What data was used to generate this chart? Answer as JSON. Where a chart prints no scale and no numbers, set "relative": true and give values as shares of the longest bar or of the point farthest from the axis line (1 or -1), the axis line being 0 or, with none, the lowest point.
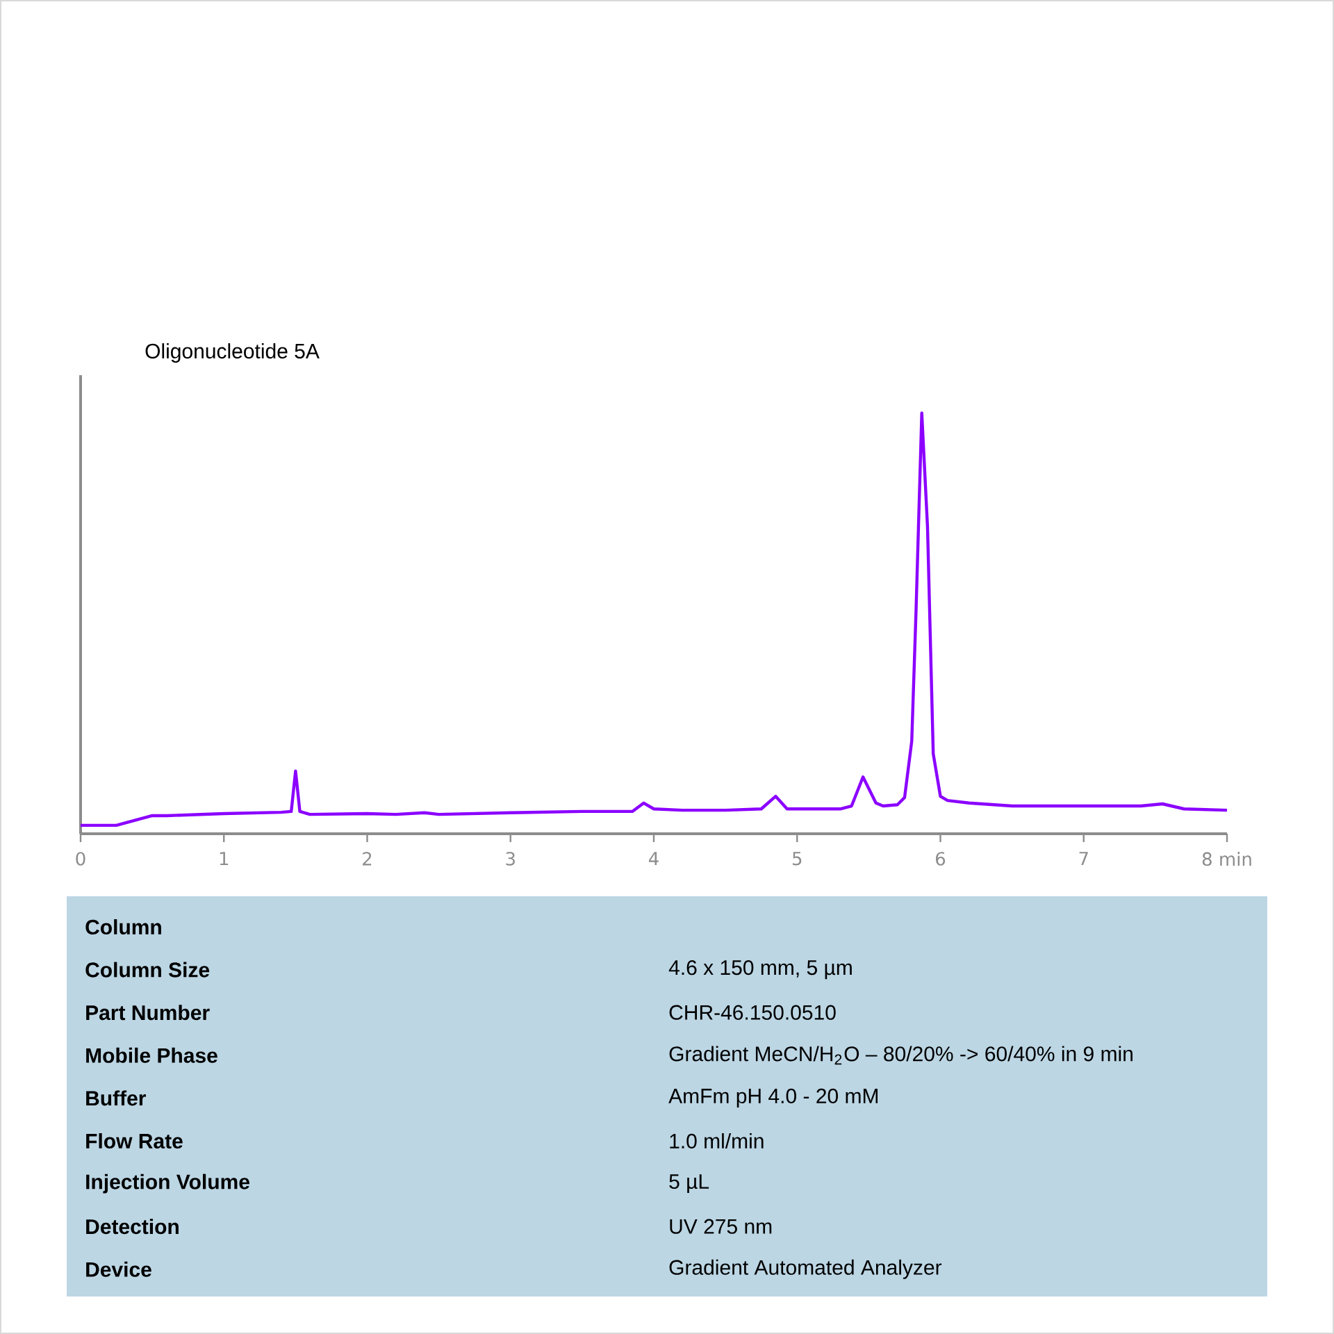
{
  "chart_data": {
    "type": "line",
    "title": "Oligonucleotide 5A",
    "relative": true,
    "color": "#8b00ff",
    "xlim": [
      0,
      8
    ],
    "xticks": [
      0,
      1,
      2,
      3,
      4,
      5,
      6,
      7,
      {
        "value": 8,
        "label": "8 min"
      }
    ],
    "x": [
      0,
      0.25,
      0.5,
      0.6,
      1.0,
      1.4,
      1.47,
      1.5,
      1.53,
      1.6,
      2.0,
      2.2,
      2.4,
      2.5,
      3.0,
      3.5,
      3.85,
      3.93,
      4.0,
      4.2,
      4.5,
      4.75,
      4.85,
      4.93,
      5.3,
      5.38,
      5.46,
      5.55,
      5.6,
      5.7,
      5.75,
      5.8,
      5.83,
      5.87,
      5.91,
      5.95,
      6.0,
      6.05,
      6.2,
      6.5,
      7.0,
      7.4,
      7.55,
      7.7,
      8.0
    ],
    "values": [
      0.02,
      0.02,
      0.043,
      0.043,
      0.048,
      0.051,
      0.053,
      0.149,
      0.053,
      0.046,
      0.048,
      0.046,
      0.05,
      0.046,
      0.05,
      0.053,
      0.053,
      0.073,
      0.059,
      0.056,
      0.056,
      0.059,
      0.089,
      0.059,
      0.059,
      0.066,
      0.135,
      0.073,
      0.066,
      0.069,
      0.086,
      0.22,
      0.53,
      1.0,
      0.73,
      0.19,
      0.089,
      0.079,
      0.073,
      0.066,
      0.066,
      0.066,
      0.071,
      0.059,
      0.056
    ],
    "annotations": [
      "Column",
      "Column Size",
      "4.6 x 150 mm, 5 µm",
      "Part Number",
      "CHR-46.150.0510",
      "Mobile Phase",
      "Gradient MeCN/H$_{2}$O –  80/20% -> 60/40% in 9 min",
      "Buffer",
      "AmFm pH 4.0 - 20 mM",
      "Flow Rate",
      "1.0 ml/min",
      "Injection Volume",
      "5 µL",
      "Detection",
      "UV 275 nm",
      "Device",
      "Gradient Automated Analyzer"
    ]
  }
}
